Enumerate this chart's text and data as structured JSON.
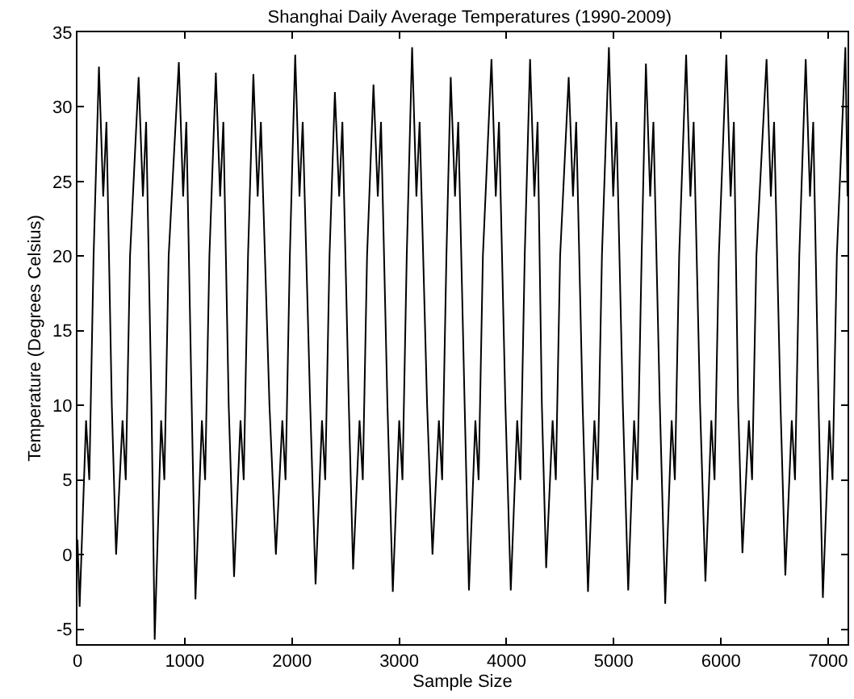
{
  "chart_data": {
    "type": "line",
    "title": "Shanghai Daily Average Temperatures (1990-2009)",
    "xlabel": "Sample Size",
    "ylabel": "Temperature (Degrees Celsius)",
    "xlim": [
      0,
      7180
    ],
    "xticks": [
      0,
      1000,
      2000,
      3000,
      4000,
      5000,
      6000,
      7000
    ],
    "ylim": [
      -6,
      35
    ],
    "yticks": [
      -5,
      0,
      5,
      10,
      15,
      20,
      25,
      30,
      35
    ],
    "line_style": "solid",
    "marker": "none",
    "series": [
      {
        "color": "#000000",
        "x": [
          0,
          20,
          80,
          110,
          150,
          200,
          240,
          270,
          320,
          360,
          420,
          450,
          490,
          570,
          610,
          640,
          690,
          720,
          780,
          810,
          850,
          945,
          985,
          1015,
          1065,
          1100,
          1160,
          1190,
          1230,
          1290,
          1330,
          1360,
          1410,
          1460,
          1520,
          1550,
          1590,
          1640,
          1680,
          1710,
          1790,
          1850,
          1910,
          1940,
          1980,
          2030,
          2070,
          2100,
          2170,
          2220,
          2280,
          2310,
          2350,
          2400,
          2440,
          2470,
          2530,
          2570,
          2630,
          2660,
          2700,
          2760,
          2800,
          2830,
          2890,
          2940,
          3000,
          3030,
          3070,
          3120,
          3160,
          3190,
          3260,
          3310,
          3370,
          3400,
          3440,
          3480,
          3520,
          3550,
          3610,
          3650,
          3710,
          3740,
          3780,
          3860,
          3900,
          3930,
          3990,
          4040,
          4100,
          4130,
          4170,
          4220,
          4260,
          4290,
          4330,
          4370,
          4430,
          4460,
          4500,
          4580,
          4620,
          4650,
          4710,
          4760,
          4820,
          4850,
          4890,
          4955,
          4995,
          5025,
          5085,
          5135,
          5190,
          5220,
          5260,
          5300,
          5340,
          5370,
          5430,
          5480,
          5540,
          5570,
          5610,
          5675,
          5715,
          5745,
          5805,
          5855,
          5910,
          5940,
          5980,
          6050,
          6090,
          6120,
          6160,
          6200,
          6260,
          6290,
          6330,
          6425,
          6465,
          6495,
          6555,
          6600,
          6660,
          6690,
          6730,
          6790,
          6830,
          6860,
          6910,
          6950,
          7010,
          7040,
          7080,
          7160,
          7180
        ],
        "values": [
          1,
          -3.5,
          9,
          5,
          20,
          32.7,
          24,
          29,
          10,
          0,
          9,
          5,
          20,
          32,
          24,
          29,
          10,
          -5.7,
          9,
          5,
          20,
          33,
          24,
          29,
          10,
          -3,
          9,
          5,
          20,
          32.3,
          24,
          29,
          10,
          -1.5,
          9,
          5,
          20,
          32.2,
          24,
          29,
          10,
          0,
          9,
          5,
          20,
          33.5,
          24,
          29,
          10,
          -2,
          9,
          5,
          20,
          31,
          24,
          29,
          10,
          -1,
          9,
          5,
          20,
          31.5,
          24,
          29,
          10,
          -2.5,
          9,
          5,
          20,
          34,
          24,
          29,
          10,
          0,
          9,
          5,
          20,
          32,
          24,
          29,
          10,
          -2.4,
          9,
          5,
          20,
          33.2,
          24,
          29,
          10,
          -2.4,
          9,
          5,
          20,
          33.2,
          24,
          29,
          10,
          -0.9,
          9,
          5,
          20,
          32,
          24,
          29,
          10,
          -2.5,
          9,
          5,
          20,
          34,
          24,
          29,
          10,
          -2.4,
          9,
          5,
          20,
          32.9,
          24,
          29,
          10,
          -3.3,
          9,
          5,
          20,
          33.5,
          24,
          29,
          10,
          -1.8,
          9,
          5,
          20,
          33.5,
          24,
          29,
          10,
          0.1,
          9,
          5,
          20,
          33.2,
          24,
          29,
          10,
          -1.4,
          9,
          5,
          20,
          33.2,
          24,
          29,
          10,
          -2.9,
          9,
          5,
          20,
          34,
          24
        ]
      }
    ]
  }
}
